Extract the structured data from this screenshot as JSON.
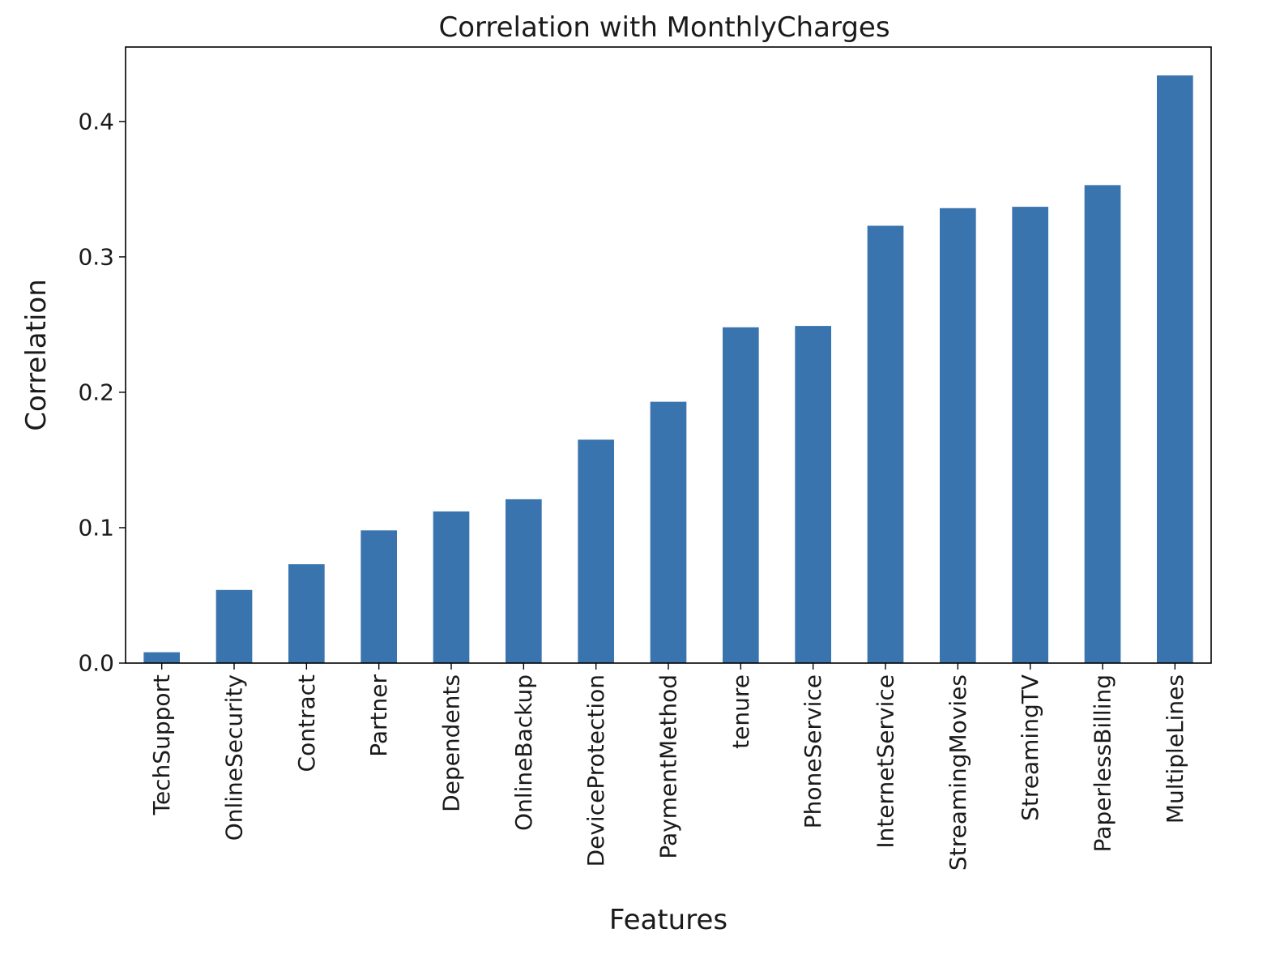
{
  "chart_data": {
    "type": "bar",
    "title": "Correlation with MonthlyCharges",
    "xlabel": "Features",
    "ylabel": "Correlation",
    "categories": [
      "TechSupport",
      "OnlineSecurity",
      "Contract",
      "Partner",
      "Dependents",
      "OnlineBackup",
      "DeviceProtection",
      "PaymentMethod",
      "tenure",
      "PhoneService",
      "InternetService",
      "StreamingMovies",
      "StreamingTV",
      "PaperlessBilling",
      "MultipleLines"
    ],
    "values": [
      0.008,
      0.054,
      0.073,
      0.098,
      0.112,
      0.121,
      0.165,
      0.193,
      0.248,
      0.249,
      0.323,
      0.336,
      0.337,
      0.353,
      0.434
    ],
    "ylim": [
      0,
      0.455
    ],
    "yticks": [
      0.0,
      0.1,
      0.2,
      0.3,
      0.4
    ],
    "ytick_labels": [
      "0.0",
      "0.1",
      "0.2",
      "0.3",
      "0.4"
    ],
    "grid": false,
    "bar_color": "#3a74ae"
  }
}
